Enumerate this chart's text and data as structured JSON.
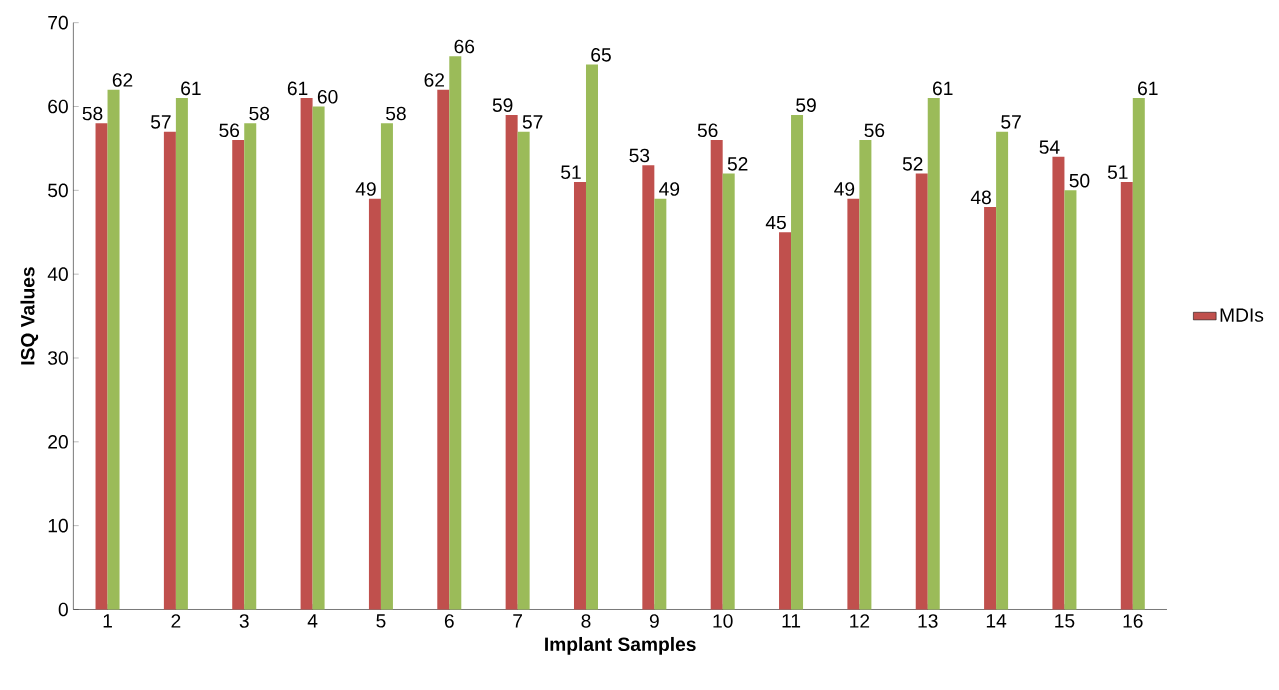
{
  "chart_data": {
    "type": "bar",
    "xlabel": "Implant Samples",
    "ylabel": "ISQ Values",
    "categories": [
      "1",
      "2",
      "3",
      "4",
      "5",
      "6",
      "7",
      "8",
      "9",
      "10",
      "11",
      "12",
      "13",
      "14",
      "15",
      "16"
    ],
    "series": [
      {
        "name": "MDIs",
        "color": "#c0504d",
        "values": [
          58,
          57,
          56,
          61,
          49,
          62,
          59,
          51,
          53,
          56,
          45,
          49,
          52,
          48,
          54,
          51
        ]
      },
      {
        "color": "#9bbb59",
        "values": [
          62,
          61,
          58,
          60,
          58,
          66,
          57,
          65,
          49,
          52,
          59,
          56,
          61,
          57,
          50,
          61
        ]
      }
    ],
    "ylim": [
      0,
      70
    ],
    "yticks": [
      0,
      10,
      20,
      30,
      40,
      50,
      60,
      70
    ],
    "grid": false,
    "legend": "right",
    "data_labels": true
  }
}
